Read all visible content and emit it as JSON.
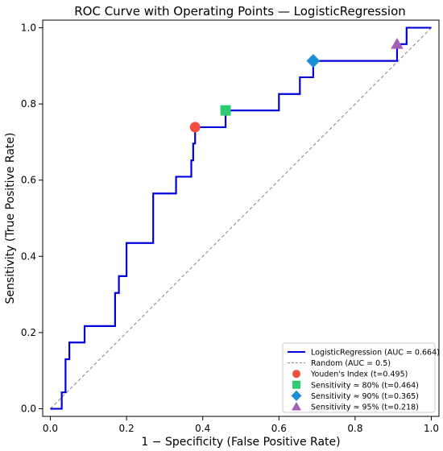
{
  "chart_data": {
    "type": "line",
    "title": "ROC Curve with Operating Points — LogisticRegression",
    "xlabel": "1 − Specificity (False Positive Rate)",
    "ylabel": "Sensitivity (True Positive Rate)",
    "xlim": [
      -0.02,
      1.02
    ],
    "ylim": [
      -0.02,
      1.02
    ],
    "xticks": [
      "0.0",
      "0.2",
      "0.4",
      "0.6",
      "0.8",
      "1.0"
    ],
    "yticks": [
      "0.0",
      "0.2",
      "0.4",
      "0.6",
      "0.8",
      "1.0"
    ],
    "grid": false,
    "legend_position": "bottom-right",
    "series": [
      {
        "name": "LogisticRegression (AUC = 0.664)",
        "color": "#0000dd",
        "style": "solid",
        "x": [
          0.0,
          0.03,
          0.03,
          0.04,
          0.04,
          0.05,
          0.05,
          0.09,
          0.09,
          0.17,
          0.17,
          0.18,
          0.18,
          0.2,
          0.2,
          0.27,
          0.27,
          0.33,
          0.33,
          0.37,
          0.37,
          0.375,
          0.375,
          0.38,
          0.38,
          0.46,
          0.46,
          0.6,
          0.6,
          0.655,
          0.655,
          0.69,
          0.69,
          0.91,
          0.91,
          0.935,
          0.935,
          1.0
        ],
        "y": [
          0.0,
          0.0,
          0.043,
          0.043,
          0.13,
          0.13,
          0.174,
          0.174,
          0.217,
          0.217,
          0.304,
          0.304,
          0.348,
          0.348,
          0.435,
          0.435,
          0.565,
          0.565,
          0.609,
          0.609,
          0.652,
          0.652,
          0.696,
          0.696,
          0.739,
          0.739,
          0.783,
          0.783,
          0.826,
          0.826,
          0.87,
          0.87,
          0.913,
          0.913,
          0.957,
          0.957,
          1.0,
          1.0
        ]
      },
      {
        "name": "Random (AUC = 0.5)",
        "color": "#808080",
        "style": "dashed",
        "x": [
          0,
          1
        ],
        "y": [
          0,
          1
        ]
      }
    ],
    "points": [
      {
        "name": "Youden's Index (t=0.495)",
        "x": 0.38,
        "y": 0.739,
        "marker": "circle",
        "color": "#f04e3e"
      },
      {
        "name": "Sensitivity ≈ 80% (t=0.464)",
        "x": 0.46,
        "y": 0.783,
        "marker": "square",
        "color": "#2ecc71"
      },
      {
        "name": "Sensitivity ≈ 90% (t=0.365)",
        "x": 0.69,
        "y": 0.913,
        "marker": "diamond",
        "color": "#1a8fd6"
      },
      {
        "name": "Sensitivity ≈ 95% (t=0.218)",
        "x": 0.91,
        "y": 0.957,
        "marker": "triangle",
        "color": "#a55fb8"
      }
    ]
  }
}
